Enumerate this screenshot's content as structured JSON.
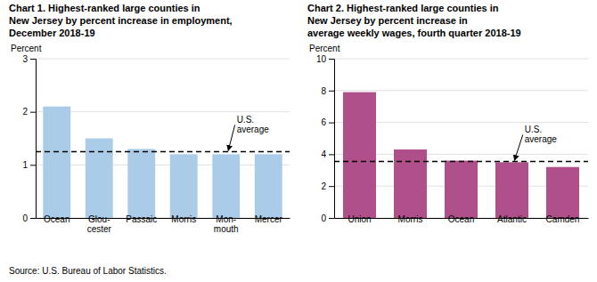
{
  "chart_data": [
    {
      "type": "bar",
      "title": [
        "Chart 1. Highest-ranked large counties in",
        "New Jersey by percent increase in employment,",
        "December 2018-19"
      ],
      "ylabel": "Percent",
      "categories": [
        "Ocean",
        "Glou-\ncester",
        "Passaic",
        "Morris",
        "Mon-\nmouth",
        "Mercer"
      ],
      "values": [
        2.1,
        1.5,
        1.3,
        1.2,
        1.2,
        1.2
      ],
      "us_average": 1.25,
      "annotation": "U.S.\naverage",
      "color": "#aacce8",
      "ylim": [
        0,
        3
      ],
      "yticks": [
        0,
        1,
        2,
        3
      ],
      "grid": true
    },
    {
      "type": "bar",
      "title": [
        "Chart 2. Highest-ranked large counties in",
        "New Jersey by percent increase in",
        "average weekly wages, fourth quarter 2018-19"
      ],
      "ylabel": "Percent",
      "categories": [
        "Union",
        "Morris",
        "Ocean",
        "Atlantic",
        "Camden"
      ],
      "values": [
        7.9,
        4.3,
        3.6,
        3.5,
        3.2
      ],
      "us_average": 3.55,
      "annotation": "U.S.\naverage",
      "color": "#b0508a",
      "ylim": [
        0,
        10
      ],
      "yticks": [
        0,
        2,
        4,
        6,
        8,
        10
      ],
      "grid": true
    }
  ],
  "source": "Source: U.S. Bureau of Labor Statistics."
}
